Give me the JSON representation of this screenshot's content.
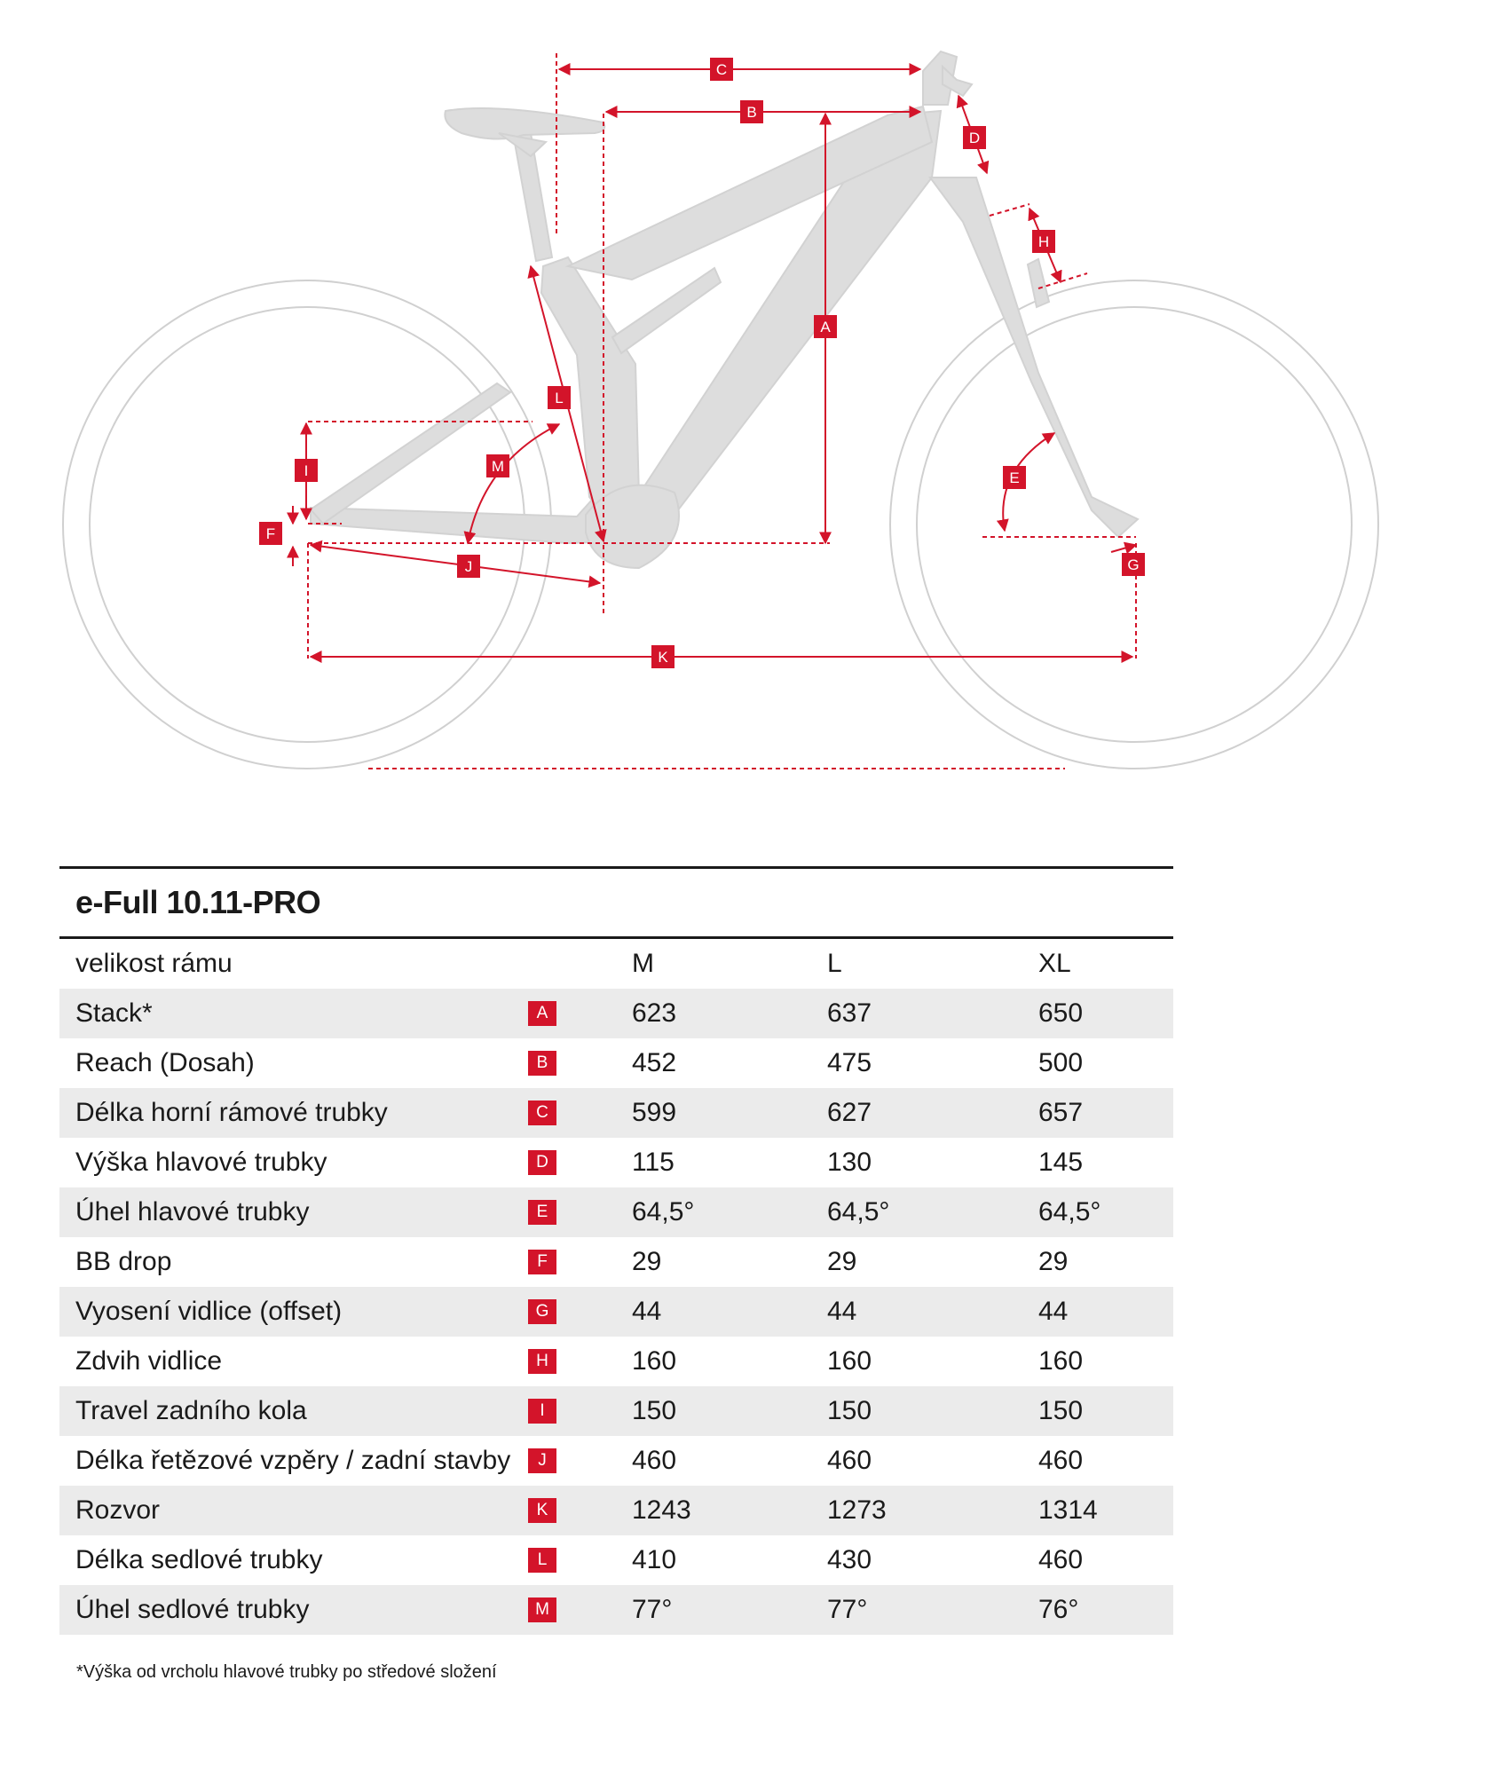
{
  "diagram_labels": [
    "A",
    "B",
    "C",
    "D",
    "E",
    "F",
    "G",
    "H",
    "I",
    "J",
    "K",
    "L",
    "M"
  ],
  "colors": {
    "accent": "#d3142a",
    "frame": "#dcdcdc",
    "wheel": "#d0d0d0",
    "shade": "#ebebeb"
  },
  "table": {
    "model": "e-Full 10.11-PRO",
    "header": {
      "label": "velikost rámu",
      "sizes": [
        "M",
        "L",
        "XL"
      ]
    },
    "rows": [
      {
        "label": "Stack*",
        "code": "A",
        "values": [
          "623",
          "637",
          "650"
        ]
      },
      {
        "label": "Reach (Dosah)",
        "code": "B",
        "values": [
          "452",
          "475",
          "500"
        ]
      },
      {
        "label": "Délka horní rámové trubky",
        "code": "C",
        "values": [
          "599",
          "627",
          "657"
        ]
      },
      {
        "label": "Výška hlavové trubky",
        "code": "D",
        "values": [
          "115",
          "130",
          "145"
        ]
      },
      {
        "label": "Úhel hlavové trubky",
        "code": "E",
        "values": [
          "64,5°",
          "64,5°",
          "64,5°"
        ]
      },
      {
        "label": "BB drop",
        "code": "F",
        "values": [
          "29",
          "29",
          "29"
        ]
      },
      {
        "label": "Vyosení vidlice (offset)",
        "code": "G",
        "values": [
          "44",
          "44",
          "44"
        ]
      },
      {
        "label": "Zdvih vidlice",
        "code": "H",
        "values": [
          "160",
          "160",
          "160"
        ]
      },
      {
        "label": "Travel zadního kola",
        "code": "I",
        "values": [
          "150",
          "150",
          "150"
        ]
      },
      {
        "label": "Délka řetězové vzpěry / zadní stavby",
        "code": "J",
        "values": [
          "460",
          "460",
          "460"
        ]
      },
      {
        "label": "Rozvor",
        "code": "K",
        "values": [
          "1243",
          "1273",
          "1314"
        ]
      },
      {
        "label": "Délka sedlové trubky",
        "code": "L",
        "values": [
          "410",
          "430",
          "460"
        ]
      },
      {
        "label": "Úhel sedlové trubky",
        "code": "M",
        "values": [
          "77°",
          "77°",
          "76°"
        ]
      }
    ]
  },
  "footnote": "*Výška od vrcholu hlavové trubky po středové složení"
}
